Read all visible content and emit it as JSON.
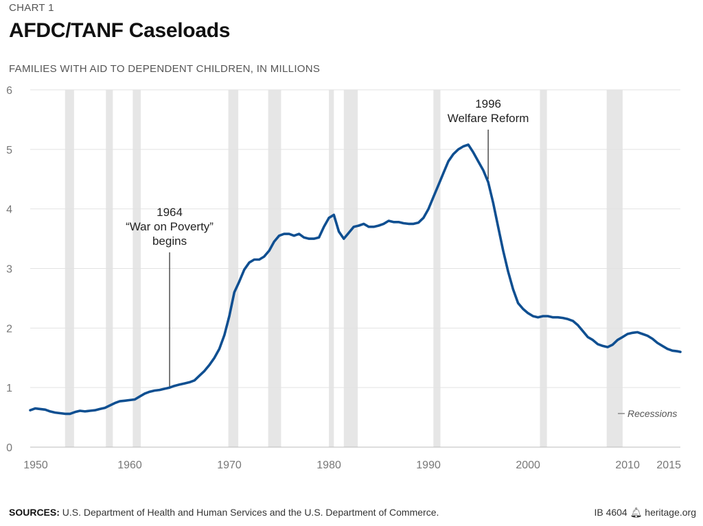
{
  "header": {
    "kicker": "CHART 1",
    "title": "AFDC/TANF Caseloads",
    "subtitle": "FAMILIES WITH AID TO DEPENDENT CHILDREN, IN MILLIONS"
  },
  "footer": {
    "sources_label": "SOURCES:",
    "sources_text": "U.S. Department of Health and Human Services and the U.S. Department of Commerce.",
    "brief_id": "IB 4604",
    "site": "heritage.org",
    "site_icon": "bell-icon"
  },
  "colors": {
    "line": "#0f4f91",
    "recession": "#e6e6e6",
    "grid": "#e2e2e2",
    "axis_text": "#777777"
  },
  "chart_data": {
    "type": "line",
    "title": "AFDC/TANF Caseloads",
    "ylabel": "FAMILIES WITH AID TO DEPENDENT CHILDREN, IN MILLIONS",
    "xlabel": "",
    "xlim": [
      1950,
      2015.3
    ],
    "ylim": [
      0,
      6
    ],
    "grid": true,
    "x_ticks": [
      1950,
      1960,
      1970,
      1980,
      1990,
      2000,
      2010,
      2015
    ],
    "x_tick_labels": [
      "1950",
      "1960",
      "1970",
      "1980",
      "1990",
      "2000",
      "2010",
      "2015"
    ],
    "y_ticks": [
      0,
      1,
      2,
      3,
      4,
      5,
      6
    ],
    "y_tick_labels": [
      "0",
      "1",
      "2",
      "3",
      "4",
      "5",
      "6"
    ],
    "legend": {
      "label": "Recessions",
      "placement": "bottom-right"
    },
    "recessions": [
      [
        1953.5,
        1954.4
      ],
      [
        1957.6,
        1958.3
      ],
      [
        1960.3,
        1961.1
      ],
      [
        1969.9,
        1970.9
      ],
      [
        1973.9,
        1975.2
      ],
      [
        1980.0,
        1980.5
      ],
      [
        1981.5,
        1982.9
      ],
      [
        1990.5,
        1991.2
      ],
      [
        2001.2,
        2001.9
      ],
      [
        2007.9,
        2009.5
      ]
    ],
    "annotations": [
      {
        "x": 1964,
        "y": 1.0,
        "lines": [
          "1964",
          "“War on Poverty”",
          "begins"
        ]
      },
      {
        "x": 1996,
        "y": 4.5,
        "lines": [
          "1996",
          "Welfare Reform"
        ]
      }
    ],
    "series": [
      {
        "x": [
          1950.0,
          1950.5,
          1951.0,
          1951.5,
          1952.0,
          1952.5,
          1953.0,
          1953.5,
          1954.0,
          1954.5,
          1955.0,
          1955.5,
          1956.0,
          1956.5,
          1957.0,
          1957.5,
          1958.0,
          1958.5,
          1959.0,
          1959.5,
          1960.0,
          1960.5,
          1961.0,
          1961.5,
          1962.0,
          1962.5,
          1963.0,
          1963.5,
          1964.0,
          1964.5,
          1965.0,
          1965.5,
          1966.0,
          1966.5,
          1967.0,
          1967.5,
          1968.0,
          1968.5,
          1969.0,
          1969.5,
          1970.0,
          1970.5,
          1971.0,
          1971.5,
          1972.0,
          1972.5,
          1973.0,
          1973.5,
          1974.0,
          1974.5,
          1975.0,
          1975.5,
          1976.0,
          1976.5,
          1977.0,
          1977.5,
          1978.0,
          1978.5,
          1979.0,
          1979.5,
          1980.0,
          1980.5,
          1981.0,
          1981.5,
          1982.0,
          1982.5,
          1983.0,
          1983.5,
          1984.0,
          1984.5,
          1985.0,
          1985.5,
          1986.0,
          1986.5,
          1987.0,
          1987.5,
          1988.0,
          1988.5,
          1989.0,
          1989.5,
          1990.0,
          1990.5,
          1991.0,
          1991.5,
          1992.0,
          1992.5,
          1993.0,
          1993.5,
          1994.0,
          1994.5,
          1995.0,
          1995.5,
          1996.0,
          1996.5,
          1997.0,
          1997.5,
          1998.0,
          1998.5,
          1999.0,
          1999.5,
          2000.0,
          2000.5,
          2001.0,
          2001.5,
          2002.0,
          2002.5,
          2003.0,
          2003.5,
          2004.0,
          2004.5,
          2005.0,
          2005.5,
          2006.0,
          2006.5,
          2007.0,
          2007.5,
          2008.0,
          2008.5,
          2009.0,
          2009.5,
          2010.0,
          2010.5,
          2011.0,
          2011.5,
          2012.0,
          2012.5,
          2013.0,
          2013.5,
          2014.0,
          2014.5,
          2015.0,
          2015.3
        ],
        "values": [
          0.62,
          0.65,
          0.64,
          0.63,
          0.6,
          0.58,
          0.57,
          0.56,
          0.56,
          0.59,
          0.61,
          0.6,
          0.61,
          0.62,
          0.64,
          0.66,
          0.7,
          0.74,
          0.77,
          0.78,
          0.79,
          0.8,
          0.85,
          0.9,
          0.93,
          0.95,
          0.96,
          0.98,
          1.0,
          1.03,
          1.05,
          1.07,
          1.09,
          1.12,
          1.2,
          1.28,
          1.38,
          1.5,
          1.65,
          1.88,
          2.2,
          2.6,
          2.78,
          2.98,
          3.1,
          3.15,
          3.15,
          3.2,
          3.3,
          3.45,
          3.55,
          3.58,
          3.58,
          3.55,
          3.58,
          3.52,
          3.5,
          3.5,
          3.52,
          3.7,
          3.85,
          3.9,
          3.62,
          3.5,
          3.6,
          3.7,
          3.72,
          3.75,
          3.7,
          3.7,
          3.72,
          3.75,
          3.8,
          3.78,
          3.78,
          3.76,
          3.75,
          3.75,
          3.77,
          3.85,
          4.0,
          4.2,
          4.4,
          4.6,
          4.8,
          4.92,
          5.0,
          5.05,
          5.08,
          4.95,
          4.8,
          4.65,
          4.45,
          4.1,
          3.7,
          3.3,
          2.95,
          2.65,
          2.42,
          2.32,
          2.25,
          2.2,
          2.18,
          2.2,
          2.2,
          2.18,
          2.18,
          2.17,
          2.15,
          2.12,
          2.05,
          1.95,
          1.85,
          1.8,
          1.73,
          1.7,
          1.68,
          1.72,
          1.8,
          1.85,
          1.9,
          1.92,
          1.93,
          1.9,
          1.87,
          1.82,
          1.75,
          1.7,
          1.65,
          1.62,
          1.61,
          1.6
        ]
      }
    ]
  }
}
